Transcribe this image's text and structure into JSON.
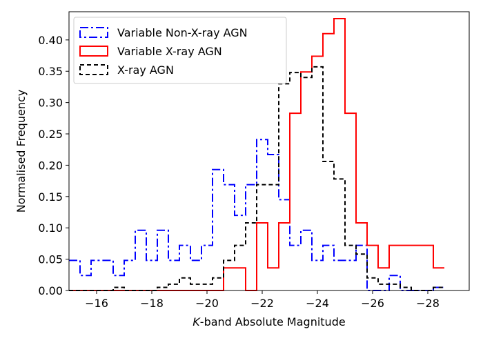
{
  "chart_data": {
    "type": "histogram",
    "title": "",
    "xlabel_italic": "K",
    "xlabel_rest": "-band Absolute Magnitude",
    "ylabel": "Normalised Frequency",
    "xlim": [
      -15,
      -29.5
    ],
    "ylim": [
      0,
      0.445
    ],
    "x_ticks": [
      -16,
      -18,
      -20,
      -22,
      -24,
      -26,
      -28
    ],
    "x_tick_labels": [
      "−16",
      "−18",
      "−20",
      "−22",
      "−24",
      "−26",
      "−28"
    ],
    "y_ticks": [
      0.0,
      0.05,
      0.1,
      0.15,
      0.2,
      0.25,
      0.3,
      0.35,
      0.4
    ],
    "y_tick_labels": [
      "0.00",
      "0.05",
      "0.10",
      "0.15",
      "0.20",
      "0.25",
      "0.30",
      "0.35",
      "0.40"
    ],
    "legend_position": "top-left",
    "series": [
      {
        "name": "Variable Non-X-ray AGN",
        "color": "#0000ff",
        "dash": "12,4,3,4",
        "edges": [
          -15.0,
          -15.4,
          -15.8,
          -16.6,
          -17.0,
          -17.4,
          -17.8,
          -18.2,
          -18.6,
          -19.0,
          -19.4,
          -19.8,
          -20.2,
          -20.6,
          -21.0,
          -21.4,
          -21.8,
          -22.2,
          -22.6,
          -23.0,
          -23.4,
          -23.8,
          -24.2,
          -24.6,
          -25.4,
          -25.8,
          -26.6,
          -27.0,
          -28.2,
          -28.6
        ],
        "values": [
          0.048,
          0.024,
          0.048,
          0.024,
          0.048,
          0.096,
          0.048,
          0.096,
          0.048,
          0.072,
          0.048,
          0.072,
          0.193,
          0.169,
          0.12,
          0.169,
          0.241,
          0.217,
          0.145,
          0.072,
          0.096,
          0.048,
          0.072,
          0.048,
          0.072,
          0.0,
          0.024,
          0.0,
          0.005
        ]
      },
      {
        "name": "Variable X-ray AGN",
        "color": "#ff0000",
        "dash": "",
        "edges": [
          -15.0,
          -20.6,
          -21.4,
          -21.8,
          -22.2,
          -22.6,
          -23.0,
          -23.4,
          -23.8,
          -24.2,
          -24.6,
          -25.0,
          -25.4,
          -25.8,
          -26.2,
          -26.6,
          -28.2,
          -28.6
        ],
        "values": [
          0.0,
          0.036,
          0.0,
          0.108,
          0.036,
          0.108,
          0.283,
          0.349,
          0.374,
          0.41,
          0.434,
          0.283,
          0.108,
          0.072,
          0.036,
          0.072,
          0.036
        ]
      },
      {
        "name": "X-ray AGN",
        "color": "#000000",
        "dash": "6,4",
        "edges": [
          -15.0,
          -16.6,
          -17.0,
          -18.2,
          -18.6,
          -19.0,
          -19.4,
          -20.2,
          -20.6,
          -21.0,
          -21.4,
          -21.8,
          -22.2,
          -22.6,
          -23.0,
          -23.4,
          -23.8,
          -24.2,
          -24.6,
          -25.0,
          -25.4,
          -25.8,
          -26.2,
          -27.0,
          -27.4,
          -28.2,
          -28.6
        ],
        "values": [
          0.0,
          0.005,
          0.0,
          0.005,
          0.01,
          0.02,
          0.01,
          0.02,
          0.048,
          0.072,
          0.108,
          0.169,
          0.169,
          0.33,
          0.348,
          0.34,
          0.357,
          0.206,
          0.178,
          0.072,
          0.058,
          0.02,
          0.01,
          0.005,
          0.0,
          0.005
        ]
      }
    ]
  }
}
